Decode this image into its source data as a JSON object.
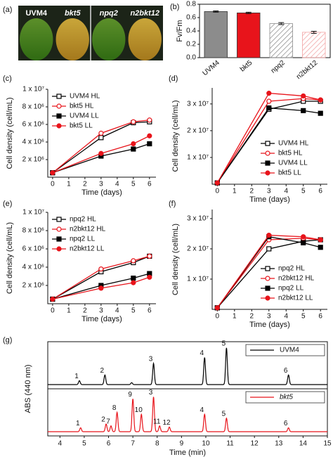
{
  "chart_data": [
    {
      "type": "image",
      "panel": "(a)",
      "labels": [
        "UVM4",
        "bkt5",
        "npq2",
        "n2bkt12"
      ]
    },
    {
      "type": "bar",
      "panel": "(b)",
      "ylabel": "Fv/Fm",
      "categories": [
        "UVM4",
        "bkt5",
        "npq2",
        "n2bkt12"
      ],
      "values": [
        0.69,
        0.67,
        0.51,
        0.38
      ],
      "errors": [
        0.01,
        0.01,
        0.015,
        0.015
      ],
      "colors": [
        "#8c8c8c",
        "#e8141b",
        "#8c8c8c",
        "#f2a3a3"
      ],
      "hatched": [
        false,
        false,
        true,
        true
      ],
      "ylim": [
        0,
        0.8
      ],
      "yticks": [
        {
          "value": 0,
          "label": "0.0"
        },
        0.2,
        0.4,
        0.6,
        0.8
      ]
    },
    {
      "type": "line",
      "panel": "(c)",
      "xlabel": "Time (days)",
      "ylabel": "Cell density (cell/mL)",
      "x": [
        0,
        3,
        5,
        6
      ],
      "xlim": [
        -0.3,
        6.4
      ],
      "xticks": [
        0,
        1,
        2,
        3,
        4,
        5,
        6
      ],
      "ylim": [
        0,
        10000000
      ],
      "yticks": [
        {
          "value": 2000000,
          "label": "2 x 10⁶"
        },
        {
          "value": 4000000,
          "label": "4 x 10⁶"
        },
        {
          "value": 6000000,
          "label": "6 x 10⁶"
        },
        {
          "value": 8000000,
          "label": "8 x 10⁶"
        },
        {
          "value": 10000000,
          "label": "1 x 10⁷"
        }
      ],
      "legend": "upper left",
      "series": [
        {
          "name": "UVM4 HL",
          "color": "#000000",
          "marker": "square",
          "filled": false,
          "values": [
            500000,
            4500000,
            6200000,
            6300000
          ]
        },
        {
          "name": "bkt5 HL",
          "color": "#e8141b",
          "marker": "circle",
          "filled": false,
          "values": [
            500000,
            5000000,
            6300000,
            6500000
          ]
        },
        {
          "name": "UVM4 LL",
          "color": "#000000",
          "marker": "square",
          "filled": true,
          "values": [
            500000,
            2400000,
            3200000,
            3800000
          ]
        },
        {
          "name": "bkt5 LL",
          "color": "#e8141b",
          "marker": "circle",
          "filled": true,
          "values": [
            500000,
            2700000,
            3800000,
            4700000
          ]
        }
      ]
    },
    {
      "type": "line",
      "panel": "(d)",
      "xlabel": "Time (days)",
      "ylabel": "Cell density (cell/mL)",
      "x": [
        0,
        3,
        5,
        6
      ],
      "xlim": [
        -0.3,
        6.4
      ],
      "xticks": [
        0,
        1,
        2,
        3,
        4,
        5,
        6
      ],
      "ylim": [
        0,
        36000000
      ],
      "yticks": [
        {
          "value": 10000000,
          "label": "1 x 10⁷"
        },
        {
          "value": 20000000,
          "label": "2 x 10⁷"
        },
        {
          "value": 30000000,
          "label": "3 x 10⁷"
        }
      ],
      "legend": "lower right",
      "series": [
        {
          "name": "UVM4 HL",
          "color": "#000000",
          "marker": "square",
          "filled": false,
          "values": [
            500000,
            28000000,
            31000000,
            31000000
          ]
        },
        {
          "name": "bkt5 HL",
          "color": "#e8141b",
          "marker": "circle",
          "filled": false,
          "values": [
            500000,
            31000000,
            32000000,
            31500000
          ]
        },
        {
          "name": "UVM4 LL",
          "color": "#000000",
          "marker": "square",
          "filled": true,
          "values": [
            500000,
            28500000,
            27500000,
            26500000
          ]
        },
        {
          "name": "bkt5 LL",
          "color": "#e8141b",
          "marker": "circle",
          "filled": true,
          "values": [
            500000,
            34000000,
            33000000,
            31500000
          ]
        }
      ]
    },
    {
      "type": "line",
      "panel": "(e)",
      "xlabel": "Time (days)",
      "ylabel": "Cell density (cell/mL)",
      "x": [
        0,
        3,
        5,
        6
      ],
      "xlim": [
        -0.3,
        6.4
      ],
      "xticks": [
        0,
        1,
        2,
        3,
        4,
        5,
        6
      ],
      "ylim": [
        0,
        10000000
      ],
      "yticks": [
        {
          "value": 2000000,
          "label": "2 x 10⁶"
        },
        {
          "value": 4000000,
          "label": "4 x 10⁶"
        },
        {
          "value": 6000000,
          "label": "6 x 10⁶"
        },
        {
          "value": 8000000,
          "label": "8 x 10⁶"
        },
        {
          "value": 10000000,
          "label": "1 x 10⁷"
        }
      ],
      "legend": "upper left",
      "series": [
        {
          "name": "npq2 HL",
          "color": "#000000",
          "marker": "square",
          "filled": false,
          "values": [
            500000,
            3500000,
            4500000,
            5200000
          ]
        },
        {
          "name": "n2bkt12 HL",
          "color": "#e8141b",
          "marker": "circle",
          "filled": false,
          "values": [
            500000,
            3800000,
            4700000,
            5200000
          ]
        },
        {
          "name": "npq2 LL",
          "color": "#000000",
          "marker": "square",
          "filled": true,
          "values": [
            500000,
            2000000,
            2800000,
            3300000
          ]
        },
        {
          "name": "n2bkt12 LL",
          "color": "#e8141b",
          "marker": "circle",
          "filled": true,
          "values": [
            500000,
            1700000,
            2300000,
            2900000
          ]
        }
      ]
    },
    {
      "type": "line",
      "panel": "(f)",
      "xlabel": "Time (days)",
      "ylabel": "Cell density (cell/mL)",
      "x": [
        0,
        3,
        5,
        6
      ],
      "xlim": [
        -0.3,
        6.4
      ],
      "xticks": [
        0,
        1,
        2,
        3,
        4,
        5,
        6
      ],
      "ylim": [
        0,
        33000000
      ],
      "yticks": [
        {
          "value": 10000000,
          "label": "1 x 10⁷"
        },
        {
          "value": 20000000,
          "label": "2 x 10⁷"
        },
        {
          "value": 30000000,
          "label": "3 x 10⁷"
        }
      ],
      "legend": "lower right",
      "series": [
        {
          "name": "npq2 HL",
          "color": "#000000",
          "marker": "square",
          "filled": false,
          "values": [
            500000,
            20000000,
            22500000,
            23000000
          ]
        },
        {
          "name": "n2bkt12 HL",
          "color": "#e8141b",
          "marker": "circle",
          "filled": false,
          "values": [
            500000,
            23000000,
            23500000,
            23000000
          ]
        },
        {
          "name": "npq2 LL",
          "color": "#000000",
          "marker": "square",
          "filled": true,
          "values": [
            500000,
            24000000,
            22000000,
            20500000
          ]
        },
        {
          "name": "n2bkt12 LL",
          "color": "#e8141b",
          "marker": "circle",
          "filled": true,
          "values": [
            500000,
            24500000,
            24000000,
            23000000
          ]
        }
      ]
    },
    {
      "type": "chromatogram",
      "panel": "(g)",
      "xlabel": "Time (min)",
      "ylabel": "ABS (440 nm)",
      "xlim": [
        3.5,
        15
      ],
      "xticks": [
        4,
        5,
        6,
        7,
        8,
        9,
        10,
        11,
        12,
        13,
        14,
        15
      ],
      "ylim": [
        0,
        1
      ],
      "series": [
        {
          "name": "UVM4",
          "color": "#000000",
          "x": [
            4.8,
            5.85,
            6.95,
            7.85,
            9.95,
            10.85,
            13.4
          ],
          "values": [
            0.1,
            0.25,
            0.05,
            0.55,
            0.7,
            0.95,
            0.25
          ],
          "peak_labels": [
            "1",
            "2",
            null,
            "3",
            "4",
            "5",
            "6"
          ],
          "label_colors": [
            "#000000",
            "#000000",
            null,
            "#000000",
            "#000000",
            "#000000",
            "#000000"
          ]
        },
        {
          "name": "bkt5",
          "color": "#e8141b",
          "x": [
            4.85,
            5.9,
            6.1,
            6.35,
            7.0,
            7.35,
            7.85,
            8.1,
            8.5,
            9.95,
            10.85,
            13.4
          ],
          "values": [
            0.1,
            0.2,
            0.15,
            0.5,
            0.85,
            0.45,
            0.9,
            0.15,
            0.12,
            0.45,
            0.35,
            0.1
          ],
          "peak_labels": [
            "1",
            "2",
            "7",
            "8",
            "9",
            "10",
            "3",
            "11",
            "12",
            "4",
            "5",
            "6"
          ],
          "label_colors": [
            "#000000",
            "#000000",
            "#1f3a93",
            "#e8141b",
            "#e8141b",
            "#e8141b",
            "#000000",
            "#2ca02c",
            "#e08a00",
            "#000000",
            "#000000",
            "#000000"
          ]
        }
      ]
    }
  ]
}
